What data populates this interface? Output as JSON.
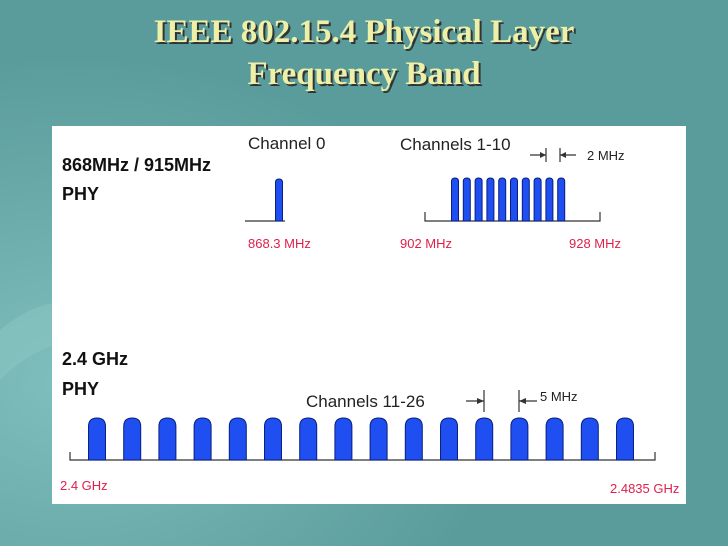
{
  "title_lines": [
    "IEEE 802.15.4 Physical Layer",
    "Frequency Band"
  ],
  "phy_868": {
    "label_lines": [
      "868MHz / 915MHz",
      "PHY"
    ],
    "channel_0": "Channel 0",
    "channels_1_10": "Channels 1-10",
    "spacing": "2 MHz",
    "freq_868": "868.3 MHz",
    "freq_902": "902 MHz",
    "freq_928": "928 MHz"
  },
  "phy_24": {
    "label_lines": [
      "2.4 GHz",
      "PHY"
    ],
    "channels": "Channels 11-26",
    "spacing": "5 MHz",
    "freq_start": "2.4 GHz",
    "freq_end": "2.4835 GHz"
  }
}
